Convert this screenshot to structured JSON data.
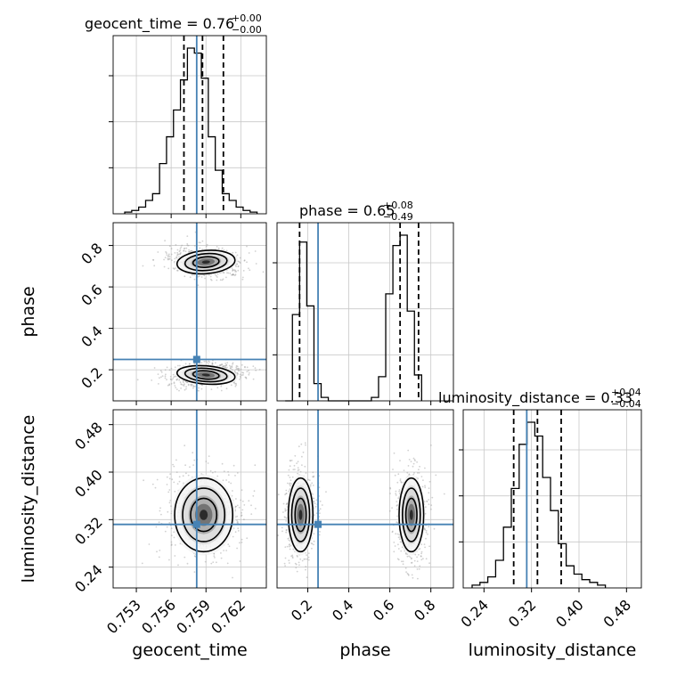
{
  "chart_data": {
    "type": "corner",
    "parameters": [
      "geocent_time",
      "phase",
      "luminosity_distance"
    ],
    "truths": {
      "geocent_time": 0.7582,
      "phase": 0.25,
      "luminosity_distance": 0.312
    },
    "titles": [
      {
        "param": "geocent_time",
        "text": "geocent_time = 0.76",
        "sup": "+0.00",
        "sub": "−0.00"
      },
      {
        "param": "phase",
        "text": "phase = 0.65",
        "sup": "+0.08",
        "sub": "−0.49"
      },
      {
        "param": "luminosity_distance",
        "text": "luminosity_distance = 0.33",
        "sup": "+0.04",
        "sub": "−0.04"
      }
    ],
    "axes": {
      "geocent_time": {
        "range": [
          0.751,
          0.7642
        ],
        "ticks": [
          0.753,
          0.756,
          0.759,
          0.762
        ],
        "tick_labels": [
          "0.753",
          "0.756",
          "0.759",
          "0.762"
        ]
      },
      "phase": {
        "range": [
          0.05,
          0.91
        ],
        "ticks": [
          0.2,
          0.4,
          0.6,
          0.8
        ],
        "tick_labels": [
          "0.2",
          "0.4",
          "0.6",
          "0.8"
        ]
      },
      "luminosity_distance": {
        "range": [
          0.205,
          0.505
        ],
        "ticks": [
          0.24,
          0.32,
          0.4,
          0.48
        ],
        "tick_labels": [
          "0.24",
          "0.32",
          "0.40",
          "0.48"
        ]
      }
    },
    "histograms": [
      {
        "param": "geocent_time",
        "bin_edges_start": 0.752,
        "bin_width": 0.0006,
        "counts": [
          1,
          2,
          4,
          8,
          12,
          30,
          46,
          62,
          80,
          99,
          96,
          81,
          46,
          26,
          12,
          8,
          4,
          2,
          1
        ],
        "quantiles": [
          0.7571,
          0.7587,
          0.7605
        ]
      },
      {
        "param": "phase",
        "bin_edges_start": 0.09,
        "bin_width": 0.035,
        "counts": [
          0,
          50,
          92,
          55,
          10,
          2,
          0,
          0,
          0,
          0,
          0,
          0,
          2,
          14,
          62,
          90,
          96,
          52,
          15
        ],
        "quantiles": [
          0.16,
          0.65,
          0.74
        ]
      },
      {
        "param": "luminosity_distance",
        "bin_edges_start": 0.22,
        "bin_width": 0.0132,
        "counts": [
          1,
          2,
          4,
          10,
          22,
          36,
          52,
          60,
          55,
          40,
          28,
          16,
          8,
          5,
          3,
          2,
          1
        ],
        "quantiles": [
          0.29,
          0.33,
          0.37
        ]
      }
    ],
    "contours_2d": [
      {
        "x": "geocent_time",
        "y": "phase",
        "modes": [
          {
            "center": [
              0.759,
              0.72
            ],
            "widths": [
              0.00125,
              0.028
            ],
            "tilt": -0.18
          },
          {
            "center": [
              0.759,
              0.175
            ],
            "widths": [
              0.00125,
              0.022
            ],
            "tilt": 0.18
          }
        ]
      },
      {
        "x": "geocent_time",
        "y": "luminosity_distance",
        "modes": [
          {
            "center": [
              0.7588,
              0.328
            ],
            "widths": [
              0.00125,
              0.031
            ],
            "tilt": 0.0
          }
        ]
      },
      {
        "x": "phase",
        "y": "luminosity_distance",
        "modes": [
          {
            "center": [
              0.165,
              0.328
            ],
            "widths": [
              0.03,
              0.031
            ],
            "tilt": 0.0
          },
          {
            "center": [
              0.705,
              0.328
            ],
            "widths": [
              0.03,
              0.031
            ],
            "tilt": 0.0
          }
        ]
      }
    ],
    "grid": true
  }
}
